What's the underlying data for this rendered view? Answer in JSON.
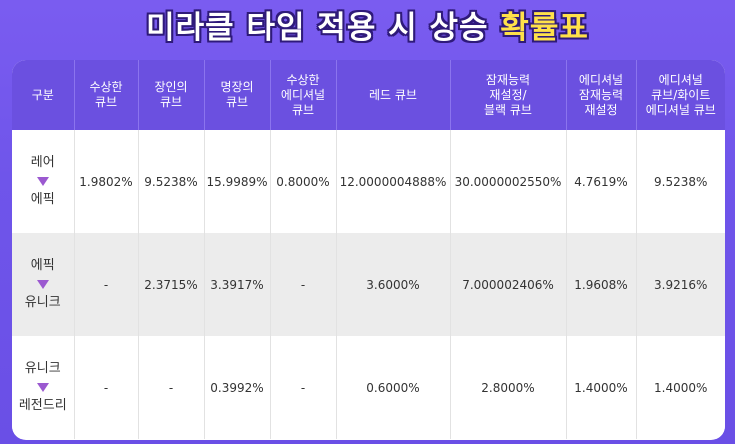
{
  "title": {
    "main": "미라클 타임 적용 시 상승 ",
    "highlight": "확률표"
  },
  "table": {
    "headers": [
      "구분",
      "수상한\n큐브",
      "장인의\n큐브",
      "명장의\n큐브",
      "수상한\n에디셔널\n큐브",
      "레드 큐브",
      "잠재능력\n재설정/\n블랙 큐브",
      "에디셔널\n잠재능력\n재설정",
      "에디셔널\n큐브/화이트\n에디셔널 큐브"
    ],
    "rows": [
      {
        "from": "레어",
        "to": "에픽",
        "values": [
          "1.9802%",
          "9.5238%",
          "15.9989%",
          "0.8000%",
          "12.0000004888%",
          "30.0000002550%",
          "4.7619%",
          "9.5238%"
        ]
      },
      {
        "from": "에픽",
        "to": "유니크",
        "values": [
          "-",
          "2.3715%",
          "3.3917%",
          "-",
          "3.6000%",
          "7.000002406%",
          "1.9608%",
          "3.9216%"
        ]
      },
      {
        "from": "유니크",
        "to": "레전드리",
        "values": [
          "-",
          "-",
          "0.3992%",
          "-",
          "0.6000%",
          "2.8000%",
          "1.4000%",
          "1.4000%"
        ]
      }
    ]
  },
  "colors": {
    "background": "#6f55ea",
    "header": "#6b50e0",
    "title_highlight": "#ffe14a",
    "arrow": "#9b59d0",
    "alt_row": "#ececec"
  },
  "icons": {
    "arrow": "down-triangle-icon"
  }
}
